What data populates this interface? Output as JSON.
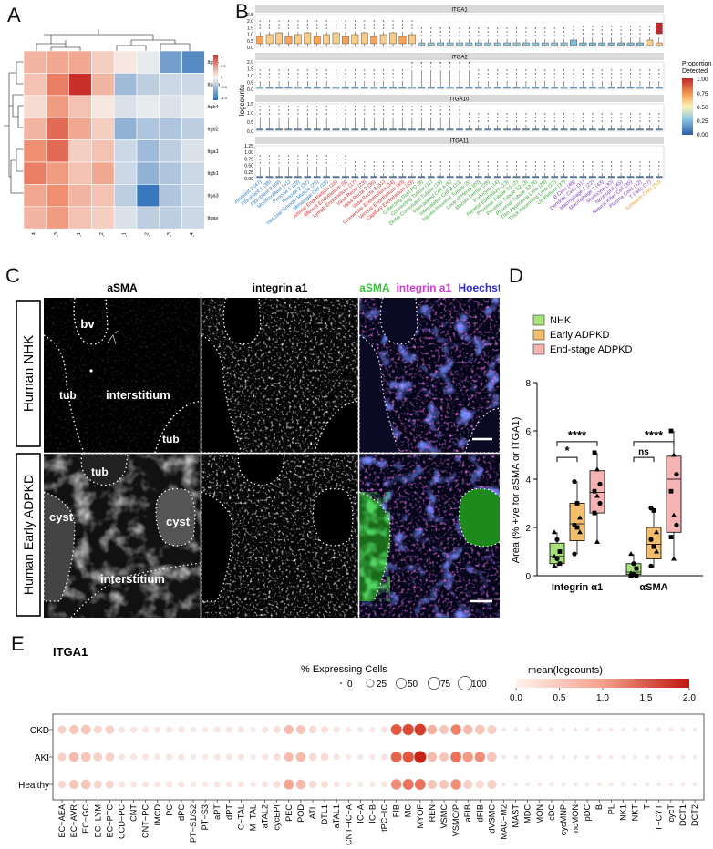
{
  "panels": {
    "A": "A",
    "B": "B",
    "C": "C",
    "D": "D",
    "E": "E"
  },
  "panelA": {
    "rows": [
      "Itgb5",
      "Itgam",
      "Itgb4",
      "Itgb2",
      "Itga1",
      "Itgb1",
      "Itga3",
      "Itgav"
    ],
    "cols": [
      "PKD_4",
      "PKD_3",
      "PKD_1",
      "PKD_2",
      "CTRL_1",
      "CTRL_2",
      "CTRL_3",
      "CTRL_4"
    ],
    "matrix": [
      [
        0.5,
        0.6,
        0.6,
        0.3,
        0.1,
        -0.1,
        -0.9,
        -1.1
      ],
      [
        0.4,
        0.9,
        1.3,
        0.5,
        -0.6,
        -0.4,
        -0.3,
        -0.3
      ],
      [
        0.2,
        0.7,
        0.4,
        0.1,
        -0.2,
        -0.1,
        -0.2,
        -0.1
      ],
      [
        0.5,
        1.0,
        0.6,
        0.3,
        -0.7,
        -0.5,
        -0.5,
        -0.4
      ],
      [
        0.8,
        1.0,
        0.3,
        0.4,
        -0.3,
        -0.6,
        -0.4,
        -0.2
      ],
      [
        0.9,
        0.7,
        0.4,
        0.6,
        -0.3,
        -0.7,
        -0.5,
        -0.3
      ],
      [
        0.6,
        0.8,
        0.5,
        0.4,
        -0.4,
        -1.3,
        -0.5,
        -0.3
      ],
      [
        0.5,
        0.7,
        0.4,
        0.3,
        -0.2,
        -0.4,
        -0.4,
        -0.3
      ]
    ],
    "colorbar_ticks": [
      "1",
      "0.5",
      "0",
      "-0.5",
      "-1.0"
    ]
  },
  "panelB": {
    "ylabel": "logcounts",
    "facets": [
      {
        "name": "ITGA1",
        "yticks": [
          "2.5",
          "2.0",
          "1.5",
          "1.0",
          "0.5",
          "0.0"
        ]
      },
      {
        "name": "ITGA2",
        "yticks": [
          "2.0",
          "1.5",
          "1.0",
          "0.5",
          "0.0"
        ]
      },
      {
        "name": "ITGA10",
        "yticks": [
          "1.5",
          "1.0",
          "0.5",
          "0.0"
        ]
      },
      {
        "name": "ITGA11",
        "yticks": [
          "1.25",
          "1.00",
          "0.75",
          "0.50",
          "0.25",
          "0.00"
        ]
      }
    ],
    "legend_title": "Proportion\nDetected",
    "legend_ticks": [
      "1.00",
      "0.75",
      "0.50",
      "0.25",
      "0.00"
    ],
    "categories": [
      {
        "label": "Fibroblast 2 (47)",
        "color": "#2f80c4"
      },
      {
        "label": "Fibroblast 1 (38)",
        "color": "#2f80c4"
      },
      {
        "label": "Fibroblast 3 (69)",
        "color": "#2f80c4"
      },
      {
        "label": "Myofibroblast (41)",
        "color": "#2f80c4"
      },
      {
        "label": "Pericyte 1 (19)",
        "color": "#2f80c4"
      },
      {
        "label": "Pericyte 2 (32)",
        "color": "#2f80c4"
      },
      {
        "label": "Vascular Smooth Muscle (26)",
        "color": "#2f80c4"
      },
      {
        "label": "Mesangial Cell (18)",
        "color": "#2f80c4"
      },
      {
        "label": "Arterial Endothelium (16)",
        "color": "#d62b2b"
      },
      {
        "label": "Afferent Endothelium (9)",
        "color": "#d62b2b"
      },
      {
        "label": "Lymph Endothelium (17)",
        "color": "#d62b2b"
      },
      {
        "label": "Vasa Recta (23)",
        "color": "#d62b2b"
      },
      {
        "label": "Vasa Recta 2 (36)",
        "color": "#d62b2b"
      },
      {
        "label": "Vasa Recta 3 (51)",
        "color": "#d62b2b"
      },
      {
        "label": "Glomerular Endothelium (24)",
        "color": "#d62b2b"
      },
      {
        "label": "Venous Endothelium (40)",
        "color": "#d62b2b"
      },
      {
        "label": "Capillary Endothelium (33)",
        "color": "#d62b2b"
      },
      {
        "label": "Collecting Duct PC (8)",
        "color": "#3aa63a"
      },
      {
        "label": "Connecting Tubule (11)",
        "color": "#3aa63a"
      },
      {
        "label": "Distal Convoluted Tubule (15)",
        "color": "#3aa63a"
      },
      {
        "label": "Intercalated Cell A (6)",
        "color": "#3aa63a"
      },
      {
        "label": "Intercalated Cell B (10)",
        "color": "#3aa63a"
      },
      {
        "label": "Injured Proximal Tubule (5)",
        "color": "#3aa63a"
      },
      {
        "label": "Loop of Henle (20)",
        "color": "#3aa63a"
      },
      {
        "label": "Macula Densa (28)",
        "color": "#3aa63a"
      },
      {
        "label": "Podocyte (14)",
        "color": "#3aa63a"
      },
      {
        "label": "Parietal Epithelium (13)",
        "color": "#3aa63a"
      },
      {
        "label": "Proximal Tubule S1 (2)",
        "color": "#3aa63a"
      },
      {
        "label": "Proximal Tubule S2 (3)",
        "color": "#3aa63a"
      },
      {
        "label": "Proximal Tubule S3 (4)",
        "color": "#3aa63a"
      },
      {
        "label": "Thin Ascending Limb (29)",
        "color": "#3aa63a"
      },
      {
        "label": "Thick Ascending Limb (12)",
        "color": "#3aa63a"
      },
      {
        "label": "Urothelium (37)",
        "color": "#3aa63a"
      },
      {
        "label": "B Cells (48)",
        "color": "#7b3fb3"
      },
      {
        "label": "Dendritic Cells (31)",
        "color": "#7b3fb3"
      },
      {
        "label": "Macrophage 1 (22)",
        "color": "#7b3fb3"
      },
      {
        "label": "Macrophage 2 (43)",
        "color": "#7b3fb3"
      },
      {
        "label": "Monocyte (30)",
        "color": "#7b3fb3"
      },
      {
        "label": "Neutrophil (45)",
        "color": "#7b3fb3"
      },
      {
        "label": "Natural Killer Cell (35)",
        "color": "#7b3fb3"
      },
      {
        "label": "Plasma Cells (42)",
        "color": "#7b3fb3"
      },
      {
        "label": "T Cells (27)",
        "color": "#7b3fb3"
      },
      {
        "label": "Schwann Cells (50)",
        "color": "#e89a20"
      }
    ]
  },
  "panelC": {
    "col_titles": [
      "aSMA",
      "integrin a1"
    ],
    "merge_title": {
      "a": "aSMA",
      "b": "integrin a1",
      "c": "Hoechst"
    },
    "row_labels": [
      "Human NHK",
      "Human Early ADPKD"
    ],
    "tile_labels": {
      "bv": "bv",
      "tub1": "tub",
      "interstitium1": "interstitium",
      "tub2": "tub",
      "tub3": "tub",
      "cyst1": "cyst",
      "cyst2": "cyst",
      "interstitium2": "interstitium"
    }
  },
  "panelD": {
    "legend": [
      {
        "label": "NHK",
        "color": "#a8e07a"
      },
      {
        "label": "Early ADPKD",
        "color": "#f5be6b"
      },
      {
        "label": "End-stage ADPKD",
        "color": "#f5b3b3"
      }
    ],
    "ylabel": "Area (% +ve for aSMA or ITGA1)",
    "yticks": [
      "8",
      "6",
      "4",
      "2",
      "0"
    ],
    "groups": [
      "Integrin α1",
      "αSMA"
    ],
    "sig": [
      "****",
      "*",
      "****",
      "ns"
    ],
    "chart_data": {
      "type": "box",
      "ylim": [
        0,
        8
      ],
      "categories": [
        "Integrin α1",
        "αSMA"
      ],
      "series": [
        {
          "name": "NHK",
          "box": [
            [
              0.5,
              0.8,
              1.35
            ],
            [
              0.05,
              0.15,
              0.5
            ]
          ],
          "whisker": [
            [
              0.3,
              1.8
            ],
            [
              0,
              0.9
            ]
          ],
          "points": [
            [
              1.8,
              1.5,
              1.0,
              0.8,
              0.7,
              0.5,
              0.4
            ],
            [
              0.9,
              0.5,
              0.3,
              0.1,
              0.05,
              0,
              0
            ]
          ]
        },
        {
          "name": "Early ADPKD",
          "box": [
            [
              1.45,
              2.15,
              3.0
            ],
            [
              0.7,
              1.3,
              2.0
            ]
          ],
          "whisker": [
            [
              0.9,
              3.9
            ],
            [
              0.3,
              2.8
            ]
          ],
          "points": [
            [
              3.9,
              3.0,
              2.4,
              2.1,
              2.0,
              1.8,
              0.9
            ],
            [
              2.8,
              2.7,
              1.8,
              1.5,
              1.2,
              1.0,
              0.4
            ]
          ]
        },
        {
          "name": "End-stage ADPKD",
          "box": [
            [
              2.6,
              3.45,
              4.35
            ],
            [
              1.8,
              4.0,
              4.95
            ]
          ],
          "whisker": [
            [
              1.4,
              5.1
            ],
            [
              0.7,
              6.0
            ]
          ],
          "points": [
            [
              5.1,
              4.4,
              3.8,
              3.5,
              3.3,
              3.0,
              2.6,
              1.4
            ],
            [
              6.0,
              5.0,
              4.2,
              3.5,
              2.5,
              2.1,
              1.6,
              0.7
            ]
          ]
        }
      ]
    }
  },
  "panelE": {
    "gene": "ITGA1",
    "size_legend_title": "% Expressing Cells",
    "size_ticks": [
      "0",
      "25",
      "50",
      "75",
      "100"
    ],
    "color_legend_title": "mean(logcounts)",
    "color_ticks": [
      "0.0",
      "0.5",
      "1.0",
      "1.5",
      "2.0"
    ],
    "rows": [
      "CKD",
      "AKI",
      "Healthy"
    ],
    "cols": [
      "EC−AEA",
      "EC−AVR",
      "EC−GC",
      "EC−LYM",
      "EC−PTC",
      "CCD−PC",
      "CNT",
      "CNT−PC",
      "IMCD",
      "PC",
      "dPC",
      "PT−S1/S2",
      "PT−S3",
      "aPT",
      "dPT",
      "C−TAL",
      "M−TAL",
      "aTAL2",
      "cycEPI",
      "PEC",
      "POD",
      "ATL",
      "DTL1",
      "aTAL1",
      "CNT−IC−A",
      "IC−A",
      "IC−B",
      "tPC−IC",
      "FIB",
      "MC",
      "MYOF",
      "REN",
      "VSMC",
      "VSMC/P",
      "aFIB",
      "dFIB",
      "dVSMC",
      "MAC−M2",
      "MAST",
      "MDC",
      "MON",
      "cDC",
      "cycMNP",
      "ncMON",
      "pDC",
      "B",
      "PL",
      "NK1",
      "NKT",
      "T",
      "T−CYT",
      "cycT",
      "DCT1",
      "DCT2"
    ],
    "chart_data": {
      "type": "dotplot",
      "value_range": [
        0,
        2
      ],
      "size_range": [
        0,
        100
      ],
      "mean": [
        [
          0.5,
          0.6,
          0.6,
          0.4,
          0.5,
          0.1,
          0.1,
          0.1,
          0.1,
          0.1,
          0.1,
          0.05,
          0.05,
          0.1,
          0.1,
          0.1,
          0.05,
          0.1,
          0.2,
          0.7,
          0.6,
          0.3,
          0.2,
          0.1,
          0.05,
          0.05,
          0.05,
          0.1,
          1.5,
          1.6,
          1.7,
          0.8,
          0.6,
          1.2,
          0.7,
          0.6,
          0.5,
          0.05,
          0.05,
          0.05,
          0.05,
          0.05,
          0.05,
          0.05,
          0.05,
          0.05,
          0.05,
          0.05,
          0.05,
          0.05,
          0.05,
          0.05,
          0.05,
          0.05
        ],
        [
          0.5,
          0.7,
          0.6,
          0.5,
          0.5,
          0.1,
          0.1,
          0.1,
          0.1,
          0.1,
          0.1,
          0.05,
          0.05,
          0.1,
          0.1,
          0.1,
          0.05,
          0.1,
          0.2,
          0.7,
          0.7,
          0.3,
          0.3,
          0.1,
          0.05,
          0.05,
          0.05,
          0.1,
          1.4,
          1.5,
          1.9,
          0.7,
          0.6,
          1.3,
          1.0,
          1.1,
          0.6,
          0.05,
          0.05,
          0.05,
          0.05,
          0.05,
          0.05,
          0.05,
          0.05,
          0.05,
          0.05,
          0.05,
          0.05,
          0.05,
          0.05,
          0.05,
          0.05,
          0.05
        ],
        [
          0.4,
          0.6,
          0.6,
          0.4,
          0.4,
          0.1,
          0.1,
          0.1,
          0.1,
          0.1,
          0.1,
          0.05,
          0.05,
          0.1,
          0.1,
          0.1,
          0.05,
          0.1,
          0.2,
          0.9,
          0.7,
          0.3,
          0.2,
          0.1,
          0.05,
          0.05,
          0.05,
          0.1,
          1.1,
          1.3,
          1.3,
          0.6,
          0.6,
          1.1,
          0.5,
          0.3,
          0.5,
          0.05,
          0.05,
          0.05,
          0.05,
          0.05,
          0.05,
          0.05,
          0.05,
          0.05,
          0.05,
          0.05,
          0.05,
          0.05,
          0.05,
          0.05,
          0.05,
          0.05
        ]
      ],
      "pct": [
        [
          30,
          40,
          45,
          30,
          35,
          15,
          15,
          15,
          15,
          15,
          15,
          10,
          10,
          15,
          15,
          15,
          10,
          15,
          20,
          40,
          40,
          25,
          20,
          15,
          10,
          10,
          10,
          15,
          60,
          65,
          70,
          45,
          40,
          55,
          45,
          45,
          40,
          5,
          5,
          5,
          5,
          5,
          5,
          5,
          5,
          5,
          5,
          5,
          5,
          5,
          5,
          5,
          5,
          5
        ],
        [
          30,
          45,
          45,
          35,
          35,
          15,
          15,
          15,
          15,
          15,
          15,
          10,
          10,
          15,
          15,
          15,
          10,
          15,
          20,
          40,
          45,
          25,
          25,
          15,
          10,
          10,
          10,
          15,
          60,
          65,
          75,
          45,
          40,
          60,
          55,
          55,
          45,
          5,
          5,
          5,
          5,
          5,
          5,
          5,
          5,
          5,
          5,
          5,
          5,
          5,
          5,
          5,
          5,
          5
        ],
        [
          25,
          40,
          45,
          30,
          30,
          15,
          15,
          15,
          15,
          15,
          15,
          10,
          10,
          15,
          15,
          15,
          10,
          15,
          20,
          50,
          45,
          25,
          20,
          15,
          10,
          10,
          10,
          15,
          55,
          60,
          60,
          40,
          40,
          55,
          40,
          30,
          40,
          5,
          5,
          5,
          5,
          5,
          5,
          5,
          5,
          5,
          5,
          5,
          5,
          5,
          5,
          5,
          5,
          5
        ]
      ]
    }
  }
}
